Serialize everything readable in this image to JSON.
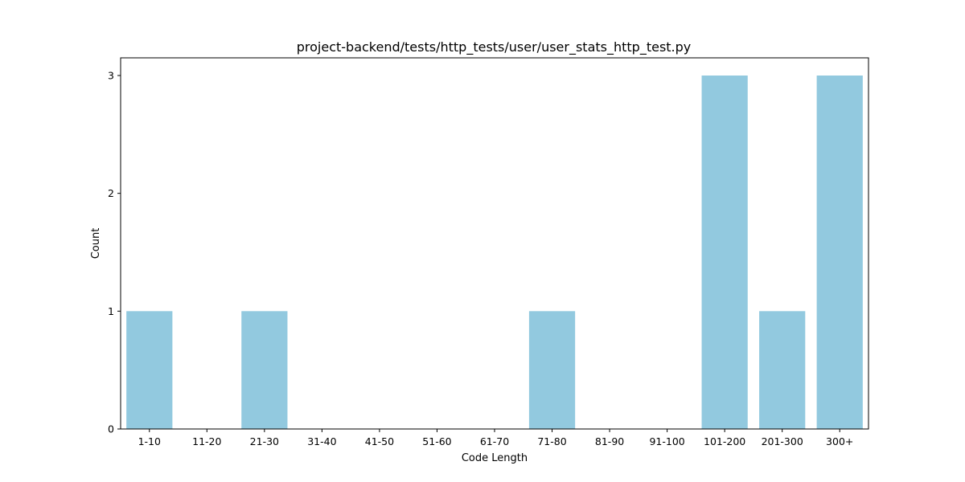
{
  "chart_data": {
    "type": "bar",
    "title": "project-backend/tests/http_tests/user/user_stats_http_test.py",
    "xlabel": "Code Length",
    "ylabel": "Count",
    "categories": [
      "1-10",
      "11-20",
      "21-30",
      "31-40",
      "41-50",
      "51-60",
      "61-70",
      "71-80",
      "81-90",
      "91-100",
      "101-200",
      "201-300",
      "300+"
    ],
    "values": [
      1,
      0,
      1,
      0,
      0,
      0,
      0,
      1,
      0,
      0,
      3,
      1,
      3
    ],
    "ylim": [
      0,
      3.15
    ],
    "yticks": [
      0,
      1,
      2,
      3
    ],
    "grid": false,
    "bar_color": "#92c9df"
  }
}
